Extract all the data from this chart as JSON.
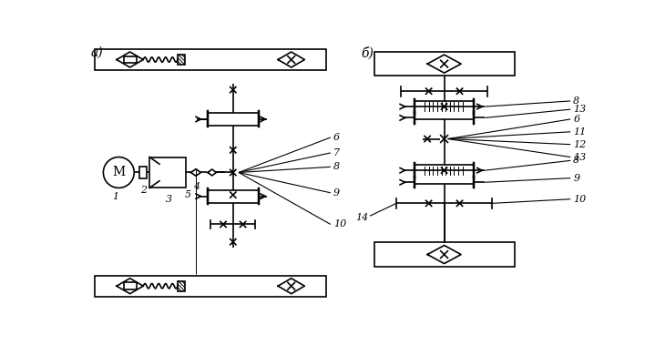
{
  "fig_width": 7.08,
  "fig_height": 3.79,
  "dpi": 100,
  "bg_color": "#ffffff",
  "line_color": "#000000",
  "label_a": "a)",
  "label_b": "б)",
  "numbers_left": [
    "1",
    "2",
    "3",
    "4",
    "5",
    "6",
    "7",
    "8",
    "9",
    "10"
  ],
  "numbers_right": [
    "8",
    "13",
    "6",
    "11",
    "12",
    "13",
    "8",
    "9",
    "10",
    "14"
  ]
}
